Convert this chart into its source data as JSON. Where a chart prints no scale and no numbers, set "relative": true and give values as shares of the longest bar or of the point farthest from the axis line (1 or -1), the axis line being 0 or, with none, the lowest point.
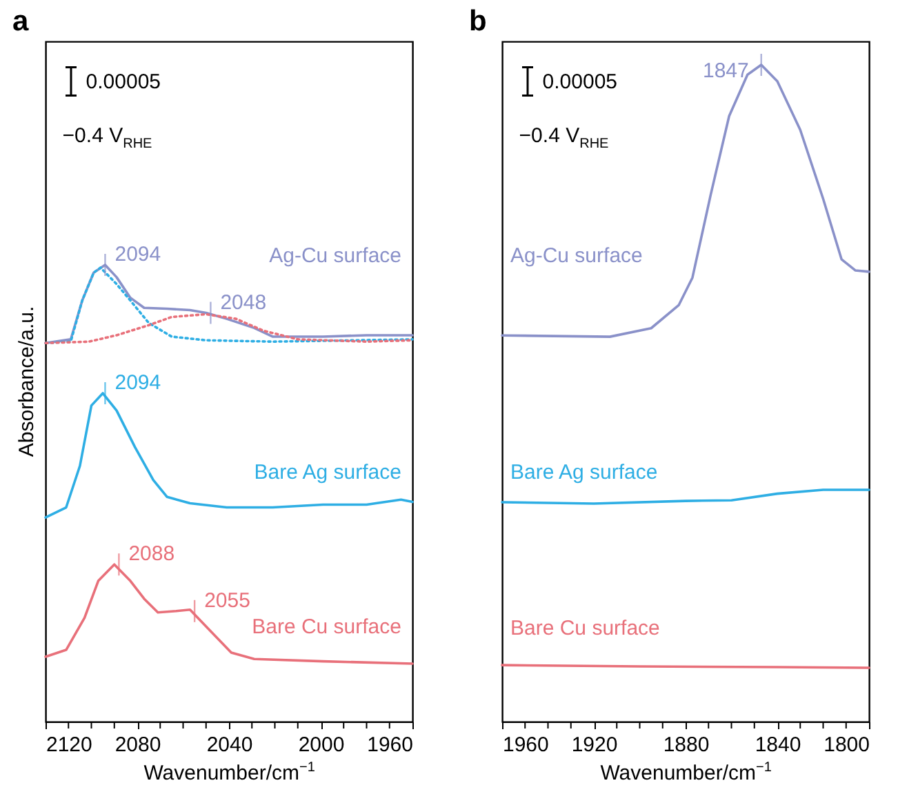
{
  "chart_data": [
    {
      "type": "line",
      "title": "a",
      "xlabel": "Wavenumber/cm$^{−1}$",
      "ylabel": "Absorbance/a.u.",
      "relative": true,
      "xlim": [
        2120,
        1960
      ],
      "xticks": [
        2120,
        {
          "value": 2110,
          "label": null
        },
        {
          "value": 2100,
          "label": null
        },
        {
          "value": 2090,
          "label": null
        },
        2080,
        {
          "value": 2070,
          "label": null
        },
        {
          "value": 2060,
          "label": null
        },
        {
          "value": 2050,
          "label": null
        },
        2040,
        {
          "value": 2030,
          "label": null
        },
        {
          "value": 2020,
          "label": null
        },
        {
          "value": 2010,
          "label": null
        },
        2000,
        {
          "value": 1990,
          "label": null
        },
        {
          "value": 1980,
          "label": null
        },
        {
          "value": 1970,
          "label": null
        },
        1960
      ],
      "series": [
        {
          "name": "Ag-Cu surface",
          "color": "#8a91c9",
          "x": [
            2120,
            2109,
            2104,
            2099,
            2094,
            2089,
            2083,
            2077,
            2067,
            2057,
            2050,
            2041,
            2029,
            2021,
            1999,
            1980,
            1960
          ],
          "values": [
            0.829,
            0.837,
            0.922,
            0.983,
            1.0,
            0.973,
            0.928,
            0.906,
            0.904,
            0.901,
            0.895,
            0.882,
            0.862,
            0.843,
            0.843,
            0.846,
            0.846
          ]
        },
        {
          "color": "#2eaee4",
          "line_style": "dotted",
          "x": [
            2120,
            2109,
            2104,
            2099,
            2096,
            2089,
            2083,
            2075,
            2065,
            2050,
            2021,
            1960
          ],
          "values": [
            0.829,
            0.832,
            0.922,
            0.983,
            0.994,
            0.958,
            0.922,
            0.873,
            0.843,
            0.835,
            0.832,
            0.837
          ]
        },
        {
          "color": "#e8707a",
          "line_style": "dotted",
          "x": [
            2120,
            2101,
            2089,
            2075,
            2065,
            2050,
            2037,
            2025,
            2010,
            1980,
            1960
          ],
          "values": [
            0.829,
            0.832,
            0.846,
            0.868,
            0.886,
            0.892,
            0.882,
            0.856,
            0.837,
            0.832,
            0.835
          ]
        },
        {
          "name": "Bare Ag surface",
          "color": "#2eaee4",
          "x": [
            2120,
            2111,
            2105,
            2100,
            2095,
            2089,
            2081,
            2073,
            2067,
            2057,
            2041,
            2021,
            1999,
            1980,
            1965,
            1960
          ],
          "values": [
            0.447,
            0.469,
            0.56,
            0.692,
            0.719,
            0.681,
            0.601,
            0.529,
            0.492,
            0.478,
            0.469,
            0.469,
            0.475,
            0.475,
            0.486,
            0.481
          ]
        },
        {
          "name": "Bare Cu surface",
          "color": "#e8707a",
          "x": [
            2120,
            2111,
            2103,
            2097,
            2090,
            2083,
            2077,
            2071,
            2063,
            2057,
            2049,
            2039,
            2029,
            1999,
            1960
          ],
          "values": [
            0.142,
            0.157,
            0.227,
            0.308,
            0.344,
            0.308,
            0.269,
            0.239,
            0.242,
            0.245,
            0.203,
            0.151,
            0.137,
            0.132,
            0.127
          ]
        }
      ],
      "annotations": [
        "0.00005",
        "−0.4 V$_{RHE}$",
        {
          "text": "2094",
          "x": 2094,
          "y": 1.0
        },
        {
          "text": "2048",
          "x": 2048,
          "y": 0.895
        },
        {
          "text": "2094",
          "x": 2094,
          "y": 0.719
        },
        {
          "text": "2088",
          "x": 2088,
          "y": 0.344
        },
        {
          "text": "2055",
          "x": 2055,
          "y": 0.242
        }
      ]
    },
    {
      "type": "line",
      "title": "b",
      "xlabel": "Wavenumber/cm$^{−1}$",
      "relative": true,
      "xlim": [
        1960,
        1800
      ],
      "xticks": [
        1960,
        {
          "value": 1950,
          "label": null
        },
        {
          "value": 1940,
          "label": null
        },
        {
          "value": 1930,
          "label": null
        },
        1920,
        {
          "value": 1910,
          "label": null
        },
        {
          "value": 1900,
          "label": null
        },
        {
          "value": 1890,
          "label": null
        },
        1880,
        {
          "value": 1870,
          "label": null
        },
        {
          "value": 1860,
          "label": null
        },
        {
          "value": 1850,
          "label": null
        },
        1840,
        {
          "value": 1830,
          "label": null
        },
        {
          "value": 1820,
          "label": null
        },
        {
          "value": 1810,
          "label": null
        },
        1800
      ],
      "series": [
        {
          "name": "Ag-Cu surface",
          "color": "#8a91c9",
          "x": [
            1960,
            1913,
            1895,
            1883,
            1877,
            1869,
            1861,
            1853,
            1847,
            1840,
            1830,
            1820,
            1812,
            1806,
            1800
          ],
          "values": [
            0.588,
            0.586,
            0.599,
            0.634,
            0.676,
            0.803,
            0.922,
            0.985,
            1.0,
            0.975,
            0.901,
            0.796,
            0.704,
            0.687,
            0.685
          ]
        },
        {
          "name": "Bare Ag surface",
          "color": "#2eaee4",
          "x": [
            1960,
            1920,
            1880,
            1860,
            1840,
            1820,
            1800
          ],
          "values": [
            0.334,
            0.332,
            0.336,
            0.337,
            0.347,
            0.353,
            0.353
          ]
        },
        {
          "name": "Bare Cu surface",
          "color": "#e8707a",
          "x": [
            1960,
            1900,
            1840,
            1800
          ],
          "values": [
            0.086,
            0.084,
            0.083,
            0.082
          ]
        }
      ],
      "annotations": [
        "0.00005",
        "−0.4 V$_{RHE}$",
        {
          "text": "1847",
          "x": 1847,
          "y": 1.0
        }
      ]
    }
  ]
}
